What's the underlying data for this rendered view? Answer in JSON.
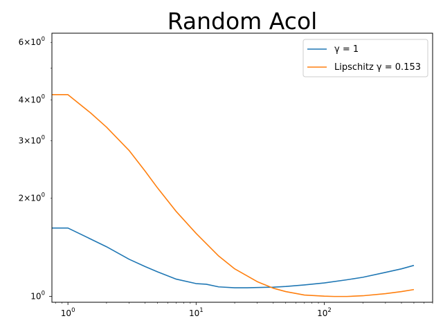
{
  "chart_data": {
    "type": "line",
    "title": "Random Acol",
    "xlabel": "",
    "ylabel": "",
    "xscale": "log",
    "yscale": "log",
    "xlim": [
      0.75,
      700
    ],
    "ylim": [
      0.96,
      6.4
    ],
    "grid": false,
    "legend_position": "upper right",
    "x_ticks": [
      {
        "value": 1,
        "base": "10",
        "exp": "0"
      },
      {
        "value": 10,
        "base": "10",
        "exp": "1"
      },
      {
        "value": 100,
        "base": "10",
        "exp": "2"
      }
    ],
    "y_ticks": [
      {
        "value": 1,
        "label": "10",
        "exp": "0"
      },
      {
        "value": 2,
        "label": "2×10",
        "exp": "0"
      },
      {
        "value": 3,
        "label": "3×10",
        "exp": "0"
      },
      {
        "value": 4,
        "label": "4×10",
        "exp": "0"
      },
      {
        "value": 6,
        "label": "6×10",
        "exp": "0"
      }
    ],
    "y_minor_ticks_unlabeled": [
      5
    ],
    "series": [
      {
        "name": "γ = 1",
        "color": "#1f77b4",
        "points": [
          [
            0.75,
            1.62
          ],
          [
            1,
            1.62
          ],
          [
            1.5,
            1.5
          ],
          [
            2,
            1.42
          ],
          [
            3,
            1.3
          ],
          [
            4,
            1.235
          ],
          [
            5,
            1.19
          ],
          [
            7,
            1.13
          ],
          [
            10,
            1.095
          ],
          [
            12,
            1.09
          ],
          [
            15,
            1.07
          ],
          [
            20,
            1.063
          ],
          [
            25,
            1.063
          ],
          [
            30,
            1.065
          ],
          [
            40,
            1.068
          ],
          [
            50,
            1.073
          ],
          [
            70,
            1.085
          ],
          [
            100,
            1.1
          ],
          [
            150,
            1.125
          ],
          [
            200,
            1.145
          ],
          [
            300,
            1.185
          ],
          [
            400,
            1.215
          ],
          [
            500,
            1.245
          ]
        ]
      },
      {
        "name": "Lipschitz γ = 0.153",
        "color": "#ff7f0e",
        "points": [
          [
            0.75,
            4.15
          ],
          [
            1,
            4.15
          ],
          [
            1.5,
            3.65
          ],
          [
            2,
            3.3
          ],
          [
            3,
            2.8
          ],
          [
            4,
            2.42
          ],
          [
            5,
            2.15
          ],
          [
            7,
            1.82
          ],
          [
            10,
            1.56
          ],
          [
            15,
            1.33
          ],
          [
            20,
            1.215
          ],
          [
            30,
            1.11
          ],
          [
            40,
            1.06
          ],
          [
            50,
            1.035
          ],
          [
            70,
            1.01
          ],
          [
            100,
            1.002
          ],
          [
            120,
            1.0
          ],
          [
            150,
            1.0
          ],
          [
            200,
            1.005
          ],
          [
            300,
            1.02
          ],
          [
            400,
            1.035
          ],
          [
            500,
            1.05
          ]
        ]
      }
    ]
  }
}
